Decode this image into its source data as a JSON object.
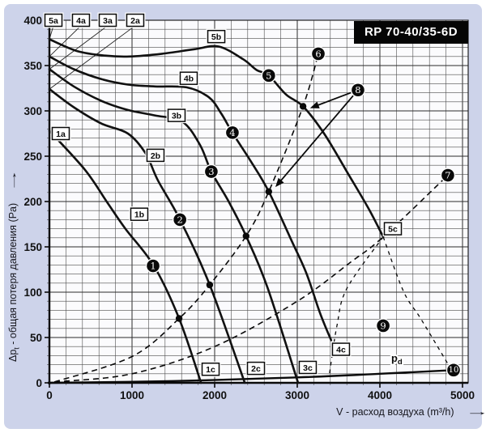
{
  "page": {
    "background": "#cdd3ea",
    "frame": "#ffffff",
    "plot_bg": "#fbfbfd",
    "grid_color": "#4d4d4d",
    "curve_color": "#111111"
  },
  "title_box": {
    "label": "RP 70-40/35-6D",
    "bg": "#050505",
    "color": "#ffffff"
  },
  "axes": {
    "x": {
      "label": "V - расход воздуха (m³/h)",
      "arrow": "→",
      "ticks": [
        0,
        1000,
        2000,
        3000,
        4000,
        5000
      ],
      "min": 0,
      "max": 5000,
      "minor_step": 200
    },
    "y": {
      "label_pre": "Δp",
      "label_sub": "t",
      "label_post": " - общая потеря давления (Pa)",
      "arrow": "→",
      "ticks": [
        0,
        50,
        100,
        150,
        200,
        250,
        300,
        350,
        400
      ],
      "min": 0,
      "max": 400,
      "minor_step": 10
    }
  },
  "chart_data": {
    "type": "line",
    "title": "RP 70-40/35-6D",
    "xlabel": "V - расход воздуха (m³/h)",
    "ylabel": "Δpt - общая потеря давления (Pa)",
    "xlim": [
      0,
      5000
    ],
    "ylim": [
      0,
      400
    ],
    "grid": true,
    "legend": "none",
    "series": [
      {
        "name": "1",
        "style": "solid",
        "points": [
          [
            0,
            278
          ],
          [
            430,
            235
          ],
          [
            700,
            199
          ],
          [
            920,
            170
          ],
          [
            1265,
            129
          ],
          [
            1570,
            71
          ],
          [
            1835,
            0
          ]
        ]
      },
      {
        "name": "2",
        "style": "solid",
        "points": [
          [
            0,
            324
          ],
          [
            295,
            304
          ],
          [
            630,
            286
          ],
          [
            950,
            275
          ],
          [
            1165,
            253
          ],
          [
            1315,
            223
          ],
          [
            1580,
            180
          ],
          [
            1940,
            108
          ],
          [
            2365,
            0
          ]
        ]
      },
      {
        "name": "3",
        "style": "solid",
        "points": [
          [
            0,
            346
          ],
          [
            295,
            327
          ],
          [
            630,
            311
          ],
          [
            950,
            301
          ],
          [
            1275,
            295
          ],
          [
            1610,
            288
          ],
          [
            1825,
            262
          ],
          [
            1960,
            233
          ],
          [
            2175,
            199
          ],
          [
            2380,
            162
          ],
          [
            2640,
            105
          ],
          [
            3010,
            0
          ]
        ]
      },
      {
        "name": "4",
        "style": "solid",
        "points": [
          [
            0,
            360
          ],
          [
            295,
            346
          ],
          [
            630,
            335
          ],
          [
            950,
            329
          ],
          [
            1275,
            327
          ],
          [
            1660,
            326
          ],
          [
            1930,
            315
          ],
          [
            2080,
            297
          ],
          [
            2215,
            276
          ],
          [
            2440,
            244
          ],
          [
            2655,
            211
          ],
          [
            2930,
            157
          ],
          [
            3110,
            121
          ],
          [
            3275,
            77
          ],
          [
            3410,
            47
          ]
        ]
      },
      {
        "name": "5",
        "style": "solid",
        "points": [
          [
            0,
            379
          ],
          [
            335,
            366
          ],
          [
            675,
            361
          ],
          [
            970,
            360
          ],
          [
            1365,
            363
          ],
          [
            1755,
            368
          ],
          [
            2050,
            371
          ],
          [
            2345,
            357
          ],
          [
            2510,
            345
          ],
          [
            2655,
            339
          ],
          [
            2865,
            318
          ],
          [
            3070,
            305
          ],
          [
            3325,
            275
          ],
          [
            3620,
            230
          ],
          [
            3865,
            192
          ],
          [
            4040,
            161
          ]
        ]
      }
    ],
    "system_curves": [
      {
        "name": "system-resistance-to-6",
        "style": "dashed",
        "points": [
          [
            60,
            1
          ],
          [
            1000,
            29
          ],
          [
            1570,
            71
          ],
          [
            1940,
            108
          ],
          [
            2380,
            162
          ],
          [
            2655,
            211
          ],
          [
            3070,
            305
          ],
          [
            3255,
            363
          ]
        ]
      },
      {
        "name": "system-resistance-to-7",
        "style": "dashed",
        "points": [
          [
            60,
            1
          ],
          [
            1000,
            10
          ],
          [
            2000,
            40
          ],
          [
            3000,
            90
          ],
          [
            3645,
            133
          ],
          [
            4040,
            161
          ],
          [
            4823,
            229
          ]
        ]
      }
    ],
    "boundary_lines": [
      {
        "name": "boundary-left-of-9",
        "style": "dashed",
        "points": [
          [
            4040,
            161
          ],
          [
            3600,
            104
          ],
          [
            3480,
            63
          ],
          [
            3390,
            10
          ]
        ]
      },
      {
        "name": "boundary-right-of-9",
        "style": "dashed",
        "points": [
          [
            4040,
            161
          ],
          [
            4285,
            101
          ],
          [
            4500,
            70
          ],
          [
            4855,
            16
          ]
        ]
      }
    ],
    "pd_curve": {
      "label_pre": "p",
      "label_sub": "d",
      "label_pos": [
        4137,
        23
      ],
      "points": [
        [
          0,
          0
        ],
        [
          1500,
          2
        ],
        [
          3000,
          6
        ],
        [
          4000,
          10
        ],
        [
          4890,
          14
        ]
      ]
    },
    "intersection_dots": [
      [
        1570,
        71
      ],
      [
        1940,
        108
      ],
      [
        2380,
        162
      ],
      [
        2655,
        211
      ],
      [
        3070,
        305
      ]
    ],
    "point_markers": [
      {
        "label": "1",
        "x": 1255,
        "y": 129
      },
      {
        "label": "2",
        "x": 1580,
        "y": 180
      },
      {
        "label": "3",
        "x": 1960,
        "y": 233
      },
      {
        "label": "4",
        "x": 2215,
        "y": 276
      },
      {
        "label": "5",
        "x": 2655,
        "y": 339
      },
      {
        "label": "6",
        "x": 3255,
        "y": 363
      },
      {
        "label": "7",
        "x": 4823,
        "y": 229
      },
      {
        "label": "8",
        "x": 3735,
        "y": 323
      },
      {
        "label": "9",
        "x": 4040,
        "y": 63
      },
      {
        "label": "10",
        "x": 4892,
        "y": 14
      }
    ],
    "curve_labels": [
      {
        "text": "5a",
        "x": 49,
        "y": 400
      },
      {
        "text": "4a",
        "x": 382,
        "y": 400
      },
      {
        "text": "3a",
        "x": 706,
        "y": 400
      },
      {
        "text": "2a",
        "x": 1039,
        "y": 400
      },
      {
        "text": "1a",
        "x": 137,
        "y": 275
      },
      {
        "text": "5b",
        "x": 2020,
        "y": 382
      },
      {
        "text": "4b",
        "x": 1686,
        "y": 336
      },
      {
        "text": "3b",
        "x": 1539,
        "y": 295
      },
      {
        "text": "2b",
        "x": 1284,
        "y": 251
      },
      {
        "text": "1b",
        "x": 1088,
        "y": 186
      },
      {
        "text": "1c",
        "x": 1951,
        "y": 15
      },
      {
        "text": "2c",
        "x": 2500,
        "y": 16
      },
      {
        "text": "3c",
        "x": 3127,
        "y": 17
      },
      {
        "text": "4c",
        "x": 3529,
        "y": 37
      },
      {
        "text": "5c",
        "x": 4157,
        "y": 170
      }
    ],
    "label_leaders": [
      {
        "from": [
          49,
          394
        ],
        "to": [
          0,
          379
        ]
      },
      {
        "from": [
          382,
          394
        ],
        "to": [
          0,
          360
        ]
      },
      {
        "from": [
          706,
          394
        ],
        "to": [
          0,
          346
        ]
      },
      {
        "from": [
          1039,
          394
        ],
        "to": [
          0,
          324
        ]
      },
      {
        "from": [
          137,
          272
        ],
        "to": [
          0,
          278
        ]
      }
    ],
    "arrows": [
      {
        "from": [
          3735,
          323
        ],
        "to": [
          3155,
          303
        ]
      },
      {
        "from": [
          3735,
          323
        ],
        "to": [
          2735,
          216
        ]
      }
    ]
  }
}
